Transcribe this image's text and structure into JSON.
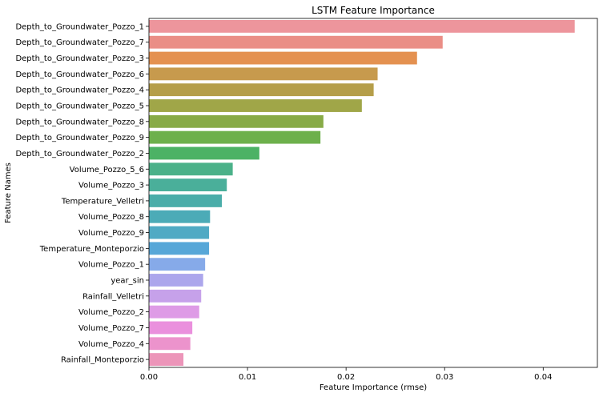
{
  "chart_data": {
    "type": "bar",
    "orientation": "horizontal",
    "title": "LSTM Feature Importance",
    "xlabel": "Feature Importance (rmse)",
    "ylabel": "Feature Names",
    "xlim": [
      0,
      0.0455
    ],
    "xticks": [
      "0.00",
      "0.01",
      "0.02",
      "0.03",
      "0.04"
    ],
    "xtick_values": [
      0,
      0.01,
      0.02,
      0.03,
      0.04
    ],
    "grid": false,
    "categories": [
      "Depth_to_Groundwater_Pozzo_1",
      "Depth_to_Groundwater_Pozzo_7",
      "Depth_to_Groundwater_Pozzo_3",
      "Depth_to_Groundwater_Pozzo_6",
      "Depth_to_Groundwater_Pozzo_4",
      "Depth_to_Groundwater_Pozzo_5",
      "Depth_to_Groundwater_Pozzo_8",
      "Depth_to_Groundwater_Pozzo_9",
      "Depth_to_Groundwater_Pozzo_2",
      "Volume_Pozzo_5_6",
      "Volume_Pozzo_3",
      "Temperature_Velletri",
      "Volume_Pozzo_8",
      "Volume_Pozzo_9",
      "Temperature_Monteporzio",
      "Volume_Pozzo_1",
      "year_sin",
      "Rainfall_Velletri",
      "Volume_Pozzo_2",
      "Volume_Pozzo_7",
      "Volume_Pozzo_4",
      "Rainfall_Monteporzio"
    ],
    "values": [
      0.0432,
      0.0298,
      0.0272,
      0.0232,
      0.0228,
      0.0216,
      0.0177,
      0.0174,
      0.0112,
      0.0085,
      0.0079,
      0.0074,
      0.0062,
      0.0061,
      0.0061,
      0.0057,
      0.0055,
      0.0053,
      0.0051,
      0.0044,
      0.0042,
      0.0035
    ],
    "colors": [
      "#ed959c",
      "#ea8e86",
      "#e49150",
      "#c79a4d",
      "#b59e49",
      "#a0a648",
      "#88ab47",
      "#6db04c",
      "#4cb265",
      "#4bb189",
      "#4aaf9a",
      "#4aada9",
      "#4cabb7",
      "#50aac4",
      "#57a7d8",
      "#86aae9",
      "#aca6ec",
      "#c6a1ea",
      "#de9be6",
      "#ea90dd",
      "#ec93cc",
      "#ec95b9"
    ]
  }
}
